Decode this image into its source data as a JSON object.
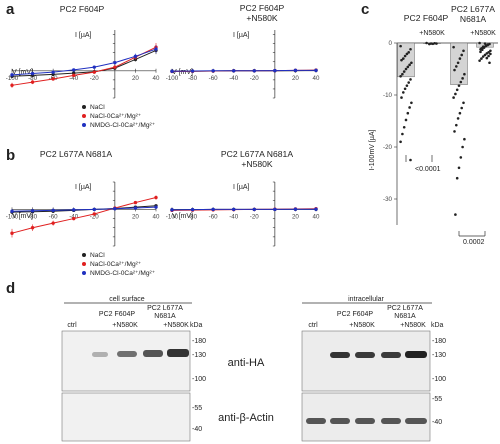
{
  "panels": {
    "a": {
      "letter": "a",
      "title_left": "PC2 F604P",
      "title_right_1": "PC2 F604P",
      "title_right_2": "+N580K",
      "current_axis_label": "I [µA]",
      "voltage_axis_label_left": "V [mV]",
      "voltage_axis_label_right": "V [mV]"
    },
    "b": {
      "letter": "b",
      "title_left": "PC2 L677A N681A",
      "title_right_1": "PC2 L677A N681A",
      "title_right_2": "+N580K",
      "current_axis_label": "I [µA]",
      "voltage_axis_label_left": "V [mV]",
      "voltage_axis_label_right": "V [mV]"
    },
    "c": {
      "letter": "c",
      "title_left": "PC2 F604P",
      "title_right_1": "PC2 L677A",
      "title_right_2": "N681A",
      "sub_left": "+N580K",
      "sub_right": "+N580K",
      "ylabel": "I-100mV [µA]",
      "p_left": "<0.0001",
      "p_right": "0.0002"
    },
    "d": {
      "letter": "d",
      "left_group": "cell surface",
      "right_group": "intracellular",
      "ctrl": "ctrl",
      "f604p": "PC2 F604P",
      "l677a_1": "PC2 L677A",
      "l677a_2": "N681A",
      "n580k": "+N580K",
      "kda": "kDa",
      "ab_top": "anti-HA",
      "ab_bottom": "anti-β-Actin",
      "ladder_top": [
        "-180",
        "-130",
        "-100"
      ],
      "ladder_bottom": [
        "-55",
        "-40"
      ]
    }
  },
  "legend": {
    "a": [
      "NaCl",
      "NaCl-0Ca²⁺/Mg²⁺",
      "NMDG-Cl-0Ca²⁺/Mg²⁺"
    ],
    "b": [
      "NaCl",
      "NaCl-0Ca²⁺/Mg²⁺",
      "NMDG-Cl-0Ca²⁺/Mg²⁺"
    ]
  },
  "colors": {
    "nacl": "#222222",
    "zero_ca": "#e02020",
    "nmdg": "#2030c0",
    "bar": "#d4d4d4"
  },
  "chart_data": [
    {
      "id": "a-left",
      "type": "line",
      "title": "PC2 F604P",
      "xlabel": "V [mV]",
      "ylabel": "I [µA]",
      "xlim": [
        -100,
        40
      ],
      "x_ticks": [
        "-100",
        "-80",
        "-60",
        "-40",
        "-20",
        "20",
        "40"
      ],
      "ylim": [
        -6,
        9
      ],
      "x": [
        -100,
        -80,
        -60,
        -40,
        -20,
        0,
        20,
        40
      ],
      "series": [
        {
          "name": "NaCl",
          "values": [
            -1.2,
            -1.0,
            -0.8,
            -0.5,
            -0.2,
            0.6,
            2.5,
            4.5
          ]
        },
        {
          "name": "NaCl-0Ca²⁺/Mg²⁺",
          "values": [
            -3.2,
            -2.5,
            -1.8,
            -1.0,
            -0.3,
            0.8,
            3.0,
            5.2
          ]
        },
        {
          "name": "NMDG-Cl-0Ca²⁺/Mg²⁺",
          "values": [
            -0.9,
            -0.6,
            -0.3,
            0.2,
            0.8,
            1.8,
            3.2,
            4.8
          ]
        }
      ]
    },
    {
      "id": "a-right",
      "type": "line",
      "title": "PC2 F604P +N580K",
      "xlabel": "V [mV]",
      "ylabel": "I [µA]",
      "xlim": [
        -100,
        40
      ],
      "x_ticks": [
        "-100",
        "-80",
        "-60",
        "-40",
        "-20",
        "20",
        "40"
      ],
      "ylim": [
        -6,
        9
      ],
      "x": [
        -100,
        -80,
        -60,
        -40,
        -20,
        0,
        20,
        40
      ],
      "series": [
        {
          "name": "NaCl",
          "values": [
            -0.1,
            -0.1,
            -0.05,
            0,
            0,
            0,
            0.05,
            0.1
          ]
        },
        {
          "name": "NaCl-0Ca²⁺/Mg²⁺",
          "values": [
            -0.15,
            -0.1,
            -0.05,
            0,
            0,
            0.05,
            0.1,
            0.15
          ]
        },
        {
          "name": "NMDG-Cl-0Ca²⁺/Mg²⁺",
          "values": [
            -0.1,
            -0.05,
            0,
            0,
            0,
            0.05,
            0.1,
            0.1
          ]
        }
      ]
    },
    {
      "id": "b-left",
      "type": "line",
      "title": "PC2 L677A N681A",
      "xlabel": "V [mV]",
      "ylabel": "I [µA]",
      "xlim": [
        -100,
        40
      ],
      "x_ticks": [
        "-100",
        "-80",
        "-60",
        "-40",
        "-20",
        "20",
        "40"
      ],
      "ylim": [
        -8,
        6
      ],
      "x": [
        -100,
        -80,
        -60,
        -40,
        -20,
        0,
        20,
        40
      ],
      "series": [
        {
          "name": "NaCl",
          "values": [
            -0.6,
            -0.5,
            -0.4,
            -0.2,
            0,
            0.2,
            0.5,
            0.8
          ]
        },
        {
          "name": "NaCl-0Ca²⁺/Mg²⁺",
          "values": [
            -5.2,
            -4.0,
            -3.0,
            -2.0,
            -1.0,
            0.3,
            1.5,
            2.6
          ]
        },
        {
          "name": "NMDG-Cl-0Ca²⁺/Mg²⁺",
          "values": [
            -0.4,
            -0.3,
            -0.2,
            -0.1,
            0,
            0.15,
            0.3,
            0.5
          ]
        }
      ]
    },
    {
      "id": "b-right",
      "type": "line",
      "title": "PC2 L677A N681A +N580K",
      "xlabel": "V [mV]",
      "ylabel": "I [µA]",
      "xlim": [
        -100,
        40
      ],
      "x_ticks": [
        "-100",
        "-80",
        "-60",
        "-40",
        "-20",
        "20",
        "40"
      ],
      "ylim": [
        -8,
        6
      ],
      "x": [
        -100,
        -80,
        -60,
        -40,
        -20,
        0,
        20,
        40
      ],
      "series": [
        {
          "name": "NaCl",
          "values": [
            -0.1,
            -0.05,
            0,
            0,
            0,
            0,
            0.05,
            0.05
          ]
        },
        {
          "name": "NaCl-0Ca²⁺/Mg²⁺",
          "values": [
            -0.2,
            -0.15,
            -0.1,
            -0.05,
            0,
            0.05,
            0.1,
            0.15
          ]
        },
        {
          "name": "NMDG-Cl-0Ca²⁺/Mg²⁺",
          "values": [
            -0.1,
            -0.05,
            0,
            0,
            0,
            0,
            0.05,
            0.05
          ]
        }
      ]
    },
    {
      "id": "c",
      "type": "bar",
      "ylabel": "I-100mV [µA]",
      "ylim": [
        -35,
        0
      ],
      "y_ticks": [
        "0",
        "-10",
        "-20",
        "-30"
      ],
      "categories": [
        "PC2 F604P",
        "PC2 F604P +N580K",
        "PC2 L677A N681A",
        "PC2 L677A N681A +N580K"
      ],
      "values": [
        -6.5,
        -0.1,
        -8.0,
        -0.8
      ],
      "points": [
        [
          -0.6,
          -1.2,
          -1.8,
          -2.1,
          -2.5,
          -3.0,
          -3.3,
          -3.8,
          -4.2,
          -4.6,
          -5.0,
          -5.5,
          -6.0,
          -6.4,
          -7.0,
          -7.6,
          -8.2,
          -8.8,
          -9.5,
          -10.5,
          -11.5,
          -12.4,
          -13.5,
          -14.8,
          -16.2,
          -17.5,
          -19.0,
          -22.5
        ],
        [
          0,
          -0.1,
          -0.05,
          -0.15,
          -0.1,
          -0.2
        ],
        [
          -0.8,
          -1.5,
          -2.3,
          -3.0,
          -3.8,
          -4.5,
          -5.2,
          -6.0,
          -6.8,
          -7.5,
          -8.2,
          -9.0,
          -9.8,
          -10.5,
          -11.5,
          -12.5,
          -13.5,
          -14.5,
          -15.8,
          -17.0,
          -18.5,
          -20.0,
          -22.0,
          -24.0,
          -26.0,
          -33.0
        ],
        [
          0,
          -0.2,
          -0.4,
          -0.6,
          -0.8,
          -1.0,
          -1.2,
          -1.5,
          -1.8,
          -2.0,
          -2.3,
          -2.6,
          -3.0,
          -3.4,
          -3.8,
          -0.3,
          -0.5,
          -0.9,
          -1.3,
          -1.7,
          -2.1,
          -2.5,
          -2.9,
          -0.1,
          -0.7,
          -1.1
        ]
      ]
    }
  ]
}
